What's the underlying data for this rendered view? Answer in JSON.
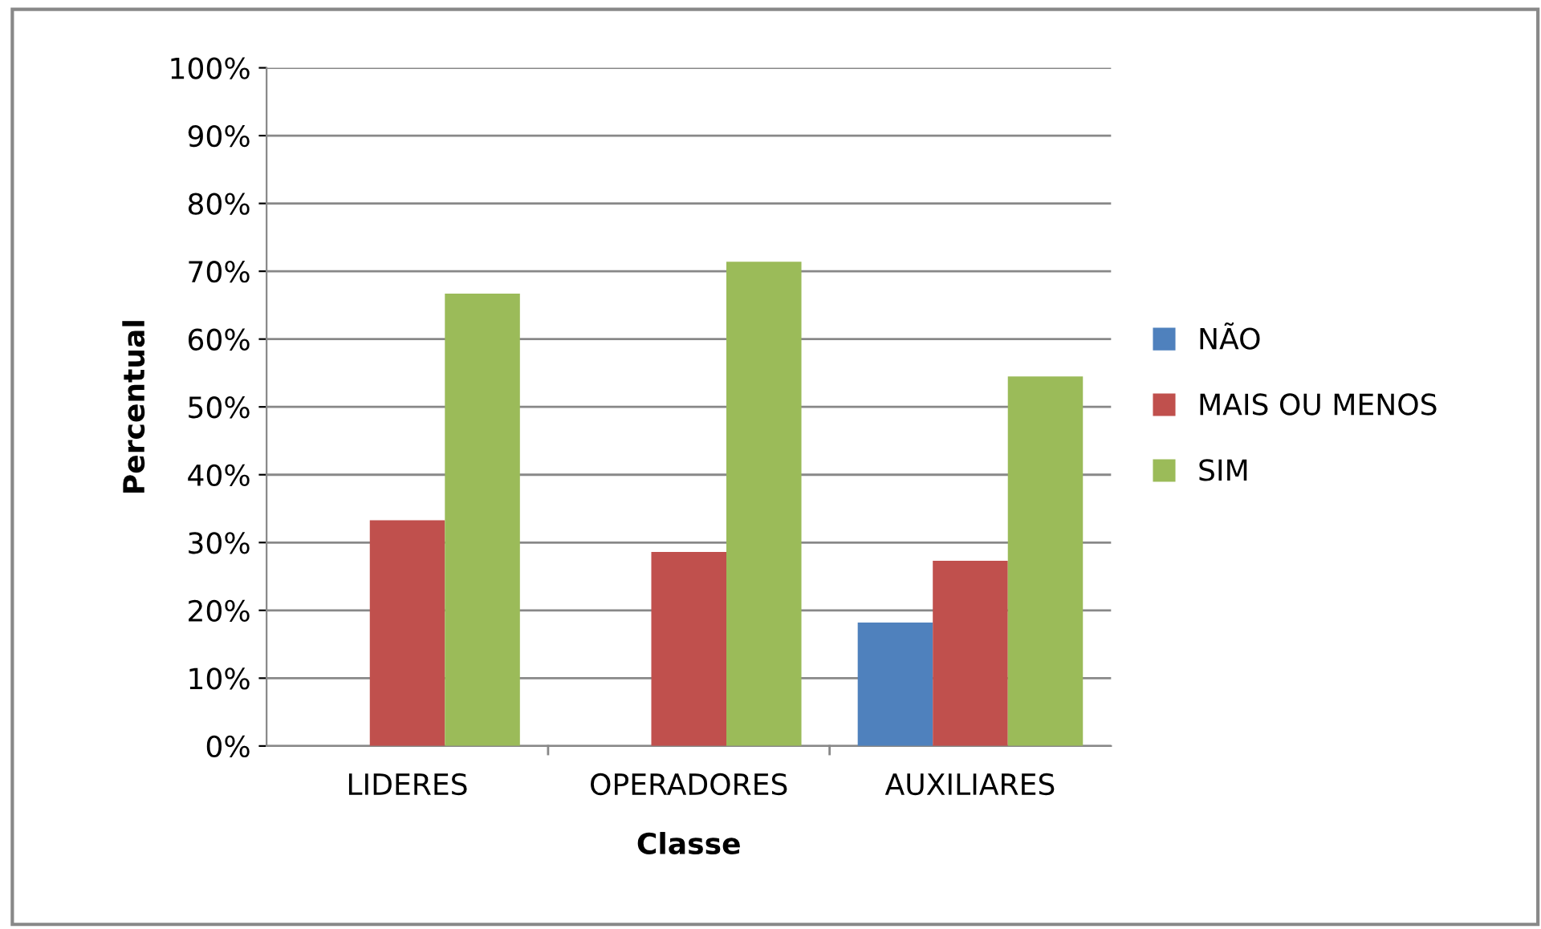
{
  "chart_data": {
    "type": "bar",
    "xlabel": "Classe",
    "ylabel": "Percentual",
    "categories": [
      "LIDERES",
      "OPERADORES",
      "AUXILIARES"
    ],
    "series": [
      {
        "name": "NÃO",
        "color": "#4f81bd",
        "values": [
          0,
          0,
          18.2
        ]
      },
      {
        "name": "MAIS OU MENOS",
        "color": "#c0504d",
        "values": [
          33.3,
          28.6,
          27.3
        ]
      },
      {
        "name": "SIM",
        "color": "#9bbb59",
        "values": [
          66.7,
          71.4,
          54.5
        ]
      }
    ],
    "ylim": [
      0,
      100
    ],
    "yticks": [
      {
        "value": 0,
        "label": "0%"
      },
      {
        "value": 10,
        "label": "10%"
      },
      {
        "value": 20,
        "label": "20%"
      },
      {
        "value": 30,
        "label": "30%"
      },
      {
        "value": 40,
        "label": "40%"
      },
      {
        "value": 50,
        "label": "50%"
      },
      {
        "value": 60,
        "label": "60%"
      },
      {
        "value": 70,
        "label": "70%"
      },
      {
        "value": 80,
        "label": "80%"
      },
      {
        "value": 90,
        "label": "90%"
      },
      {
        "value": 100,
        "label": "100%"
      }
    ],
    "grid": "y",
    "legend": "right"
  }
}
